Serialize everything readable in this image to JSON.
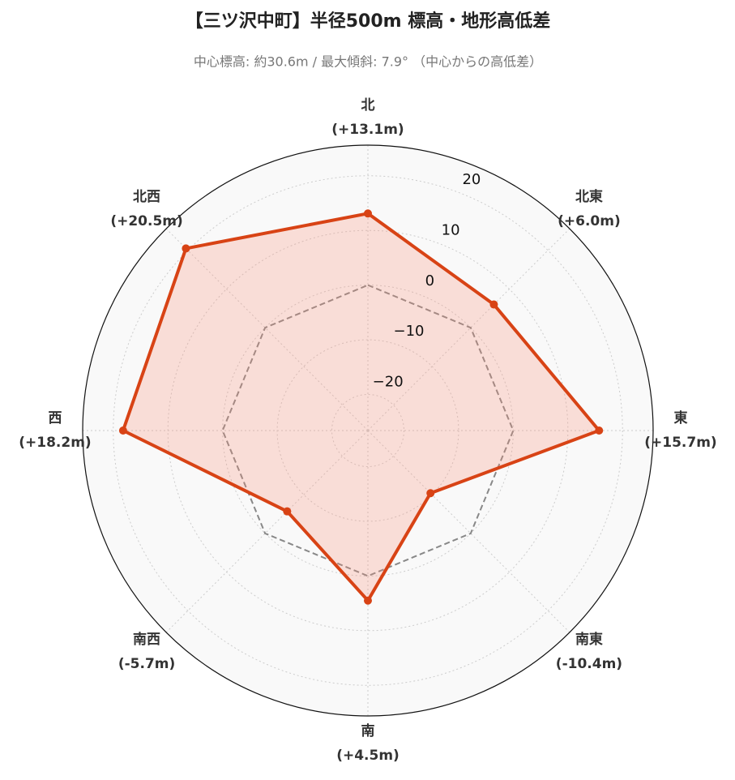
{
  "chart_data": {
    "type": "radar",
    "title": "【三ツ沢中町】半径500m 標高・地形高低差",
    "subtitle": "中心標高: 約30.6m / 最大傾斜: 7.9° （中心からの高低差）",
    "categories": [
      "北",
      "北東",
      "東",
      "南東",
      "南",
      "南西",
      "西",
      "北西"
    ],
    "values": [
      13.1,
      6.0,
      15.7,
      -10.4,
      4.5,
      -5.7,
      18.2,
      20.5
    ],
    "value_labels": [
      "(+13.1m)",
      "(+6.0m)",
      "(+15.7m)",
      "(-10.4m)",
      "(+4.5m)",
      "(-5.7m)",
      "(+18.2m)",
      "(+20.5m)"
    ],
    "color": "#d84315",
    "reference_value": 0,
    "rlim": [
      -26.6,
      25.6
    ],
    "rticks": [
      {
        "value": -20,
        "label": "−20"
      },
      {
        "value": -10,
        "label": "−10"
      },
      0,
      10,
      20
    ],
    "grid": true
  }
}
